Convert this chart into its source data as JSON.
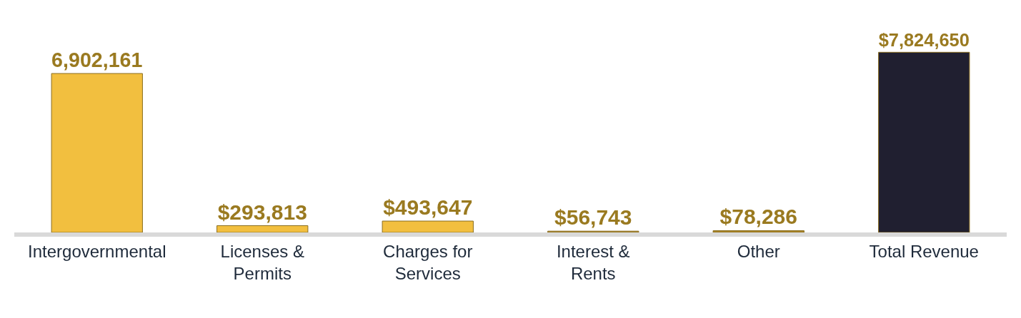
{
  "chart_data": {
    "type": "bar",
    "categories": [
      "Intergovernmental",
      "Licenses &\nPermits",
      "Charges for\nServices",
      "Interest &\nRents",
      "Other",
      "Total Revenue"
    ],
    "values": [
      6902161,
      293813,
      493647,
      56743,
      78286,
      7824650
    ],
    "value_labels": [
      "6,902,161",
      "$293,813",
      "$493,647",
      "$56,743",
      "$78,286",
      "$7,824,650"
    ],
    "colors": [
      "#f2bf3f",
      "#f2bf3f",
      "#f2bf3f",
      "#a88428",
      "#a88428",
      "#201f30"
    ]
  }
}
